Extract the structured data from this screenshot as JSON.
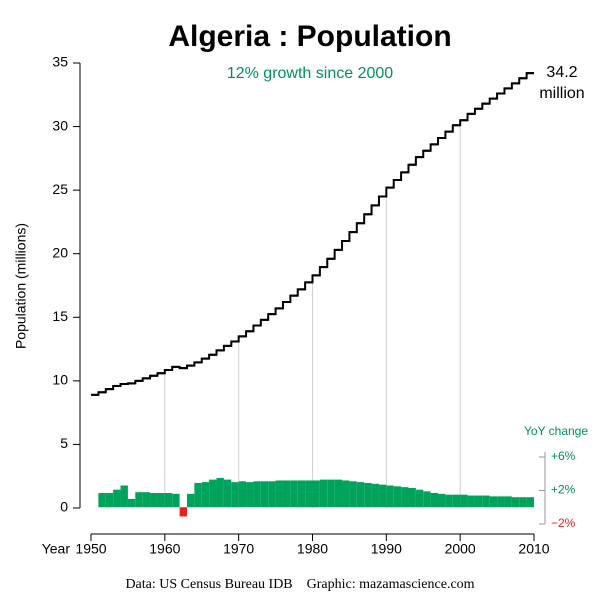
{
  "chart_data": {
    "type": "step",
    "title": "Algeria :  Population",
    "subtitle": "12% growth since 2000",
    "ylabel": "Population (millions)",
    "xlabel": "Year",
    "y2label": "YoY change",
    "end_unit": "million",
    "source": "Data: US Census Bureau IDB    Graphic: mazamascience.com",
    "x": [
      1950,
      1951,
      1952,
      1953,
      1954,
      1955,
      1956,
      1957,
      1958,
      1959,
      1960,
      1961,
      1962,
      1963,
      1964,
      1965,
      1966,
      1967,
      1968,
      1969,
      1970,
      1971,
      1972,
      1973,
      1974,
      1975,
      1976,
      1977,
      1978,
      1979,
      1980,
      1981,
      1982,
      1983,
      1984,
      1985,
      1986,
      1987,
      1988,
      1989,
      1990,
      1991,
      1992,
      1993,
      1994,
      1995,
      1996,
      1997,
      1998,
      1999,
      2000,
      2001,
      2002,
      2003,
      2004,
      2005,
      2006,
      2007,
      2008,
      2009
    ],
    "series": [
      {
        "color": "#000000",
        "values": [
          8.9,
          9.1,
          9.35,
          9.6,
          9.75,
          9.8,
          10.0,
          10.2,
          10.4,
          10.6,
          10.85,
          11.1,
          11.0,
          11.2,
          11.45,
          11.75,
          12.05,
          12.4,
          12.75,
          13.1,
          13.5,
          13.9,
          14.35,
          14.8,
          15.25,
          15.7,
          16.2,
          16.7,
          17.2,
          17.75,
          18.3,
          18.95,
          19.6,
          20.3,
          21.0,
          21.7,
          22.4,
          23.1,
          23.8,
          24.5,
          25.2,
          25.8,
          26.4,
          27.0,
          27.6,
          28.1,
          28.6,
          29.1,
          29.6,
          30.1,
          30.5,
          31.0,
          31.4,
          31.8,
          32.2,
          32.6,
          33.0,
          33.4,
          33.8,
          34.2
        ]
      },
      {
        "type": "bar",
        "axis": "y2",
        "color": "#00a35c",
        "negative_color": "#e8201f",
        "values": [
          null,
          1.7,
          1.7,
          2.1,
          2.6,
          1.0,
          1.8,
          1.8,
          1.7,
          1.7,
          1.7,
          1.6,
          -1.1,
          1.6,
          2.9,
          3.0,
          3.3,
          3.5,
          3.3,
          3.0,
          3.1,
          3.0,
          3.1,
          3.1,
          3.1,
          3.2,
          3.2,
          3.2,
          3.2,
          3.2,
          3.2,
          3.3,
          3.3,
          3.3,
          3.2,
          3.1,
          3.0,
          2.9,
          2.8,
          2.7,
          2.6,
          2.5,
          2.4,
          2.3,
          2.1,
          1.9,
          1.7,
          1.6,
          1.5,
          1.5,
          1.5,
          1.4,
          1.4,
          1.4,
          1.3,
          1.3,
          1.3,
          1.2,
          1.2,
          1.2
        ]
      }
    ],
    "xlim": [
      1950,
      2010
    ],
    "xticks": [
      1950,
      1960,
      1970,
      1980,
      1990,
      2000,
      2010
    ],
    "ylim": [
      0,
      35
    ],
    "yticks": [
      0,
      5,
      10,
      15,
      20,
      25,
      30,
      35
    ],
    "y2lim": [
      -2,
      6
    ],
    "y2ticks": [
      {
        "value": 6,
        "label": "+6%"
      },
      {
        "value": 2,
        "label": "+2%"
      },
      {
        "value": -2,
        "label": "−2%"
      }
    ],
    "grid": true
  }
}
